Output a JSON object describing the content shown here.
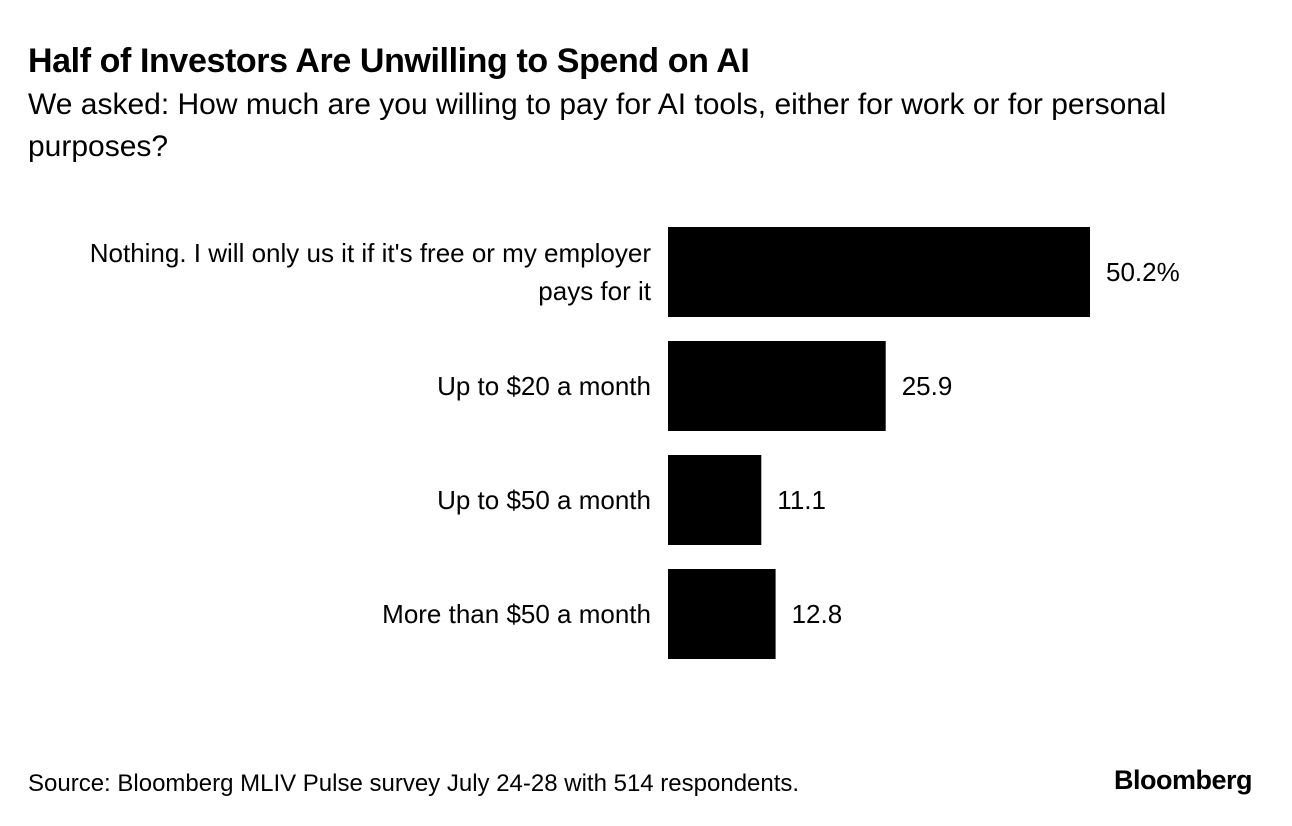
{
  "header": {
    "title": "Half of Investors Are Unwilling to Spend on AI",
    "subtitle": "We asked: How much are you willing to pay for AI tools, either for work or for personal purposes?"
  },
  "chart_data": {
    "type": "bar",
    "orientation": "horizontal",
    "title": "Half of Investors Are Unwilling to Spend on AI",
    "subtitle": "We asked: How much are you willing to pay for AI tools, either for work or for personal purposes?",
    "categories": [
      "Nothing. I will only us it if it's free or my employer pays for it",
      "Up to $20 a month",
      "Up to $50 a month",
      "More than $50 a month"
    ],
    "category_lines": [
      [
        "Nothing. I will only us it if it's free or my employer",
        "pays for it"
      ],
      [
        "Up to $20 a month"
      ],
      [
        "Up to $50 a month"
      ],
      [
        "More than $50 a month"
      ]
    ],
    "values": [
      50.2,
      25.9,
      11.1,
      12.8
    ],
    "value_labels": [
      "50.2%",
      "25.9",
      "11.1",
      "12.8"
    ],
    "unit": "%",
    "xlabel": "",
    "ylabel": "",
    "xlim": [
      0,
      100
    ],
    "grid": false,
    "legend": "none",
    "bar_color": "#000000"
  },
  "footer": {
    "source": "Source: Bloomberg MLIV Pulse survey July 24-28 with 514 respondents.",
    "brand": "Bloomberg"
  }
}
